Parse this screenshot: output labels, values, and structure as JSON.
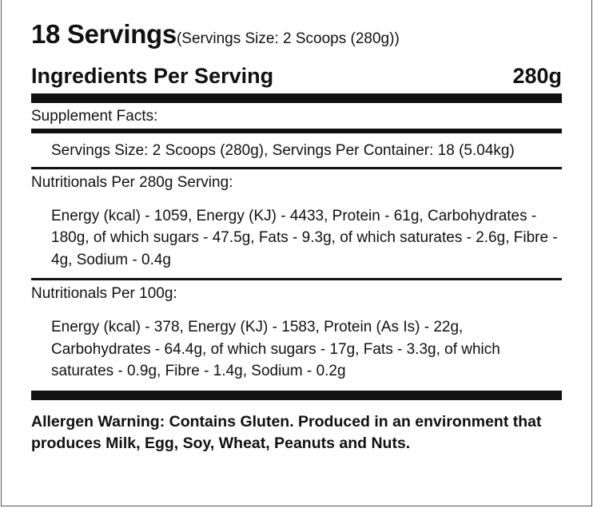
{
  "header": {
    "servings_count": "18 Servings",
    "servings_size": "(Servings Size: 2 Scoops (280g))",
    "ingredients_label": "Ingredients Per Serving",
    "ingredients_amount": "280g"
  },
  "supplement_facts": {
    "heading": "Supplement Facts:",
    "body": "Servings Size: 2 Scoops (280g), Servings Per Container: 18 (5.04kg)"
  },
  "nutrition_per_serving": {
    "heading": "Nutritionals Per 280g Serving:",
    "body": "Energy (kcal) - 1059, Energy (KJ) - 4433, Protein - 61g, Carbohydrates - 180g, of which sugars - 47.5g, Fats - 9.3g, of which saturates - 2.6g, Fibre - 4g, Sodium - 0.4g"
  },
  "nutrition_per_100g": {
    "heading": "Nutritionals Per 100g:",
    "body": "Energy (kcal) - 378, Energy (KJ) - 1583, Protein (As Is) - 22g, Carbohydrates - 64.4g, of which sugars - 17g, Fats - 3.3g, of which saturates - 0.9g, Fibre - 1.4g, Sodium - 0.2g"
  },
  "allergen": {
    "text": "Allergen Warning: Contains Gluten. Produced in an environment that produces Milk, Egg, Soy, Wheat, Peanuts and Nuts."
  }
}
